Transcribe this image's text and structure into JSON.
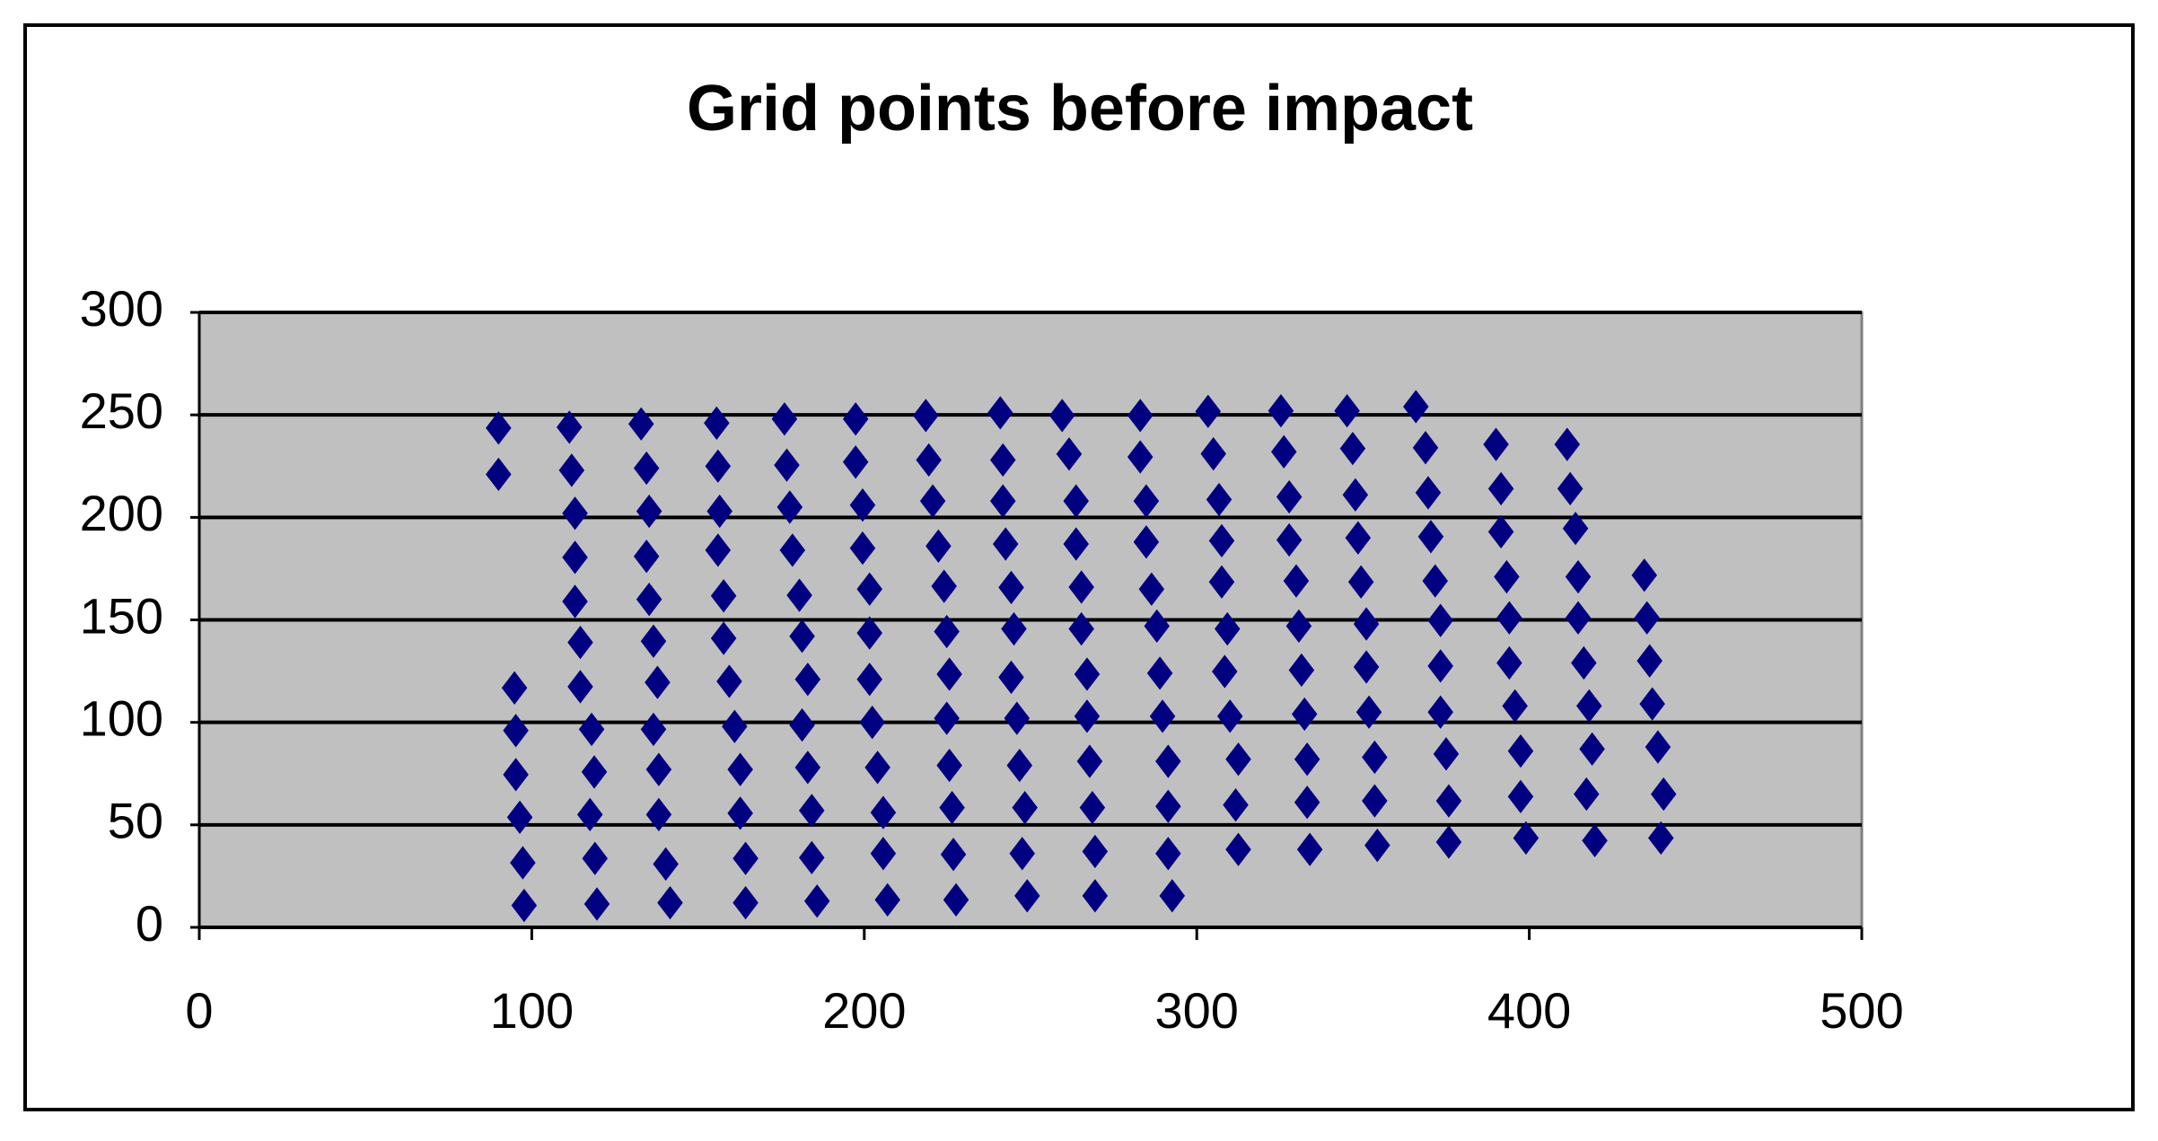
{
  "chart_data": {
    "type": "scatter",
    "title": "Grid points before impact",
    "series": [
      {
        "color": "#000080",
        "x": [
          90,
          90,
          94.8,
          95.2,
          95.2,
          96.4,
          97.3,
          97.7,
          111.3,
          112,
          113,
          113,
          113,
          114.6,
          114.6,
          118,
          118.8,
          117.5,
          119,
          119.6,
          132.9,
          134.5,
          135.3,
          134.5,
          135.3,
          136.6,
          137.8,
          136.6,
          138.2,
          138.2,
          140.3,
          141.6,
          155.6,
          156,
          156.5,
          156,
          157.7,
          157.7,
          159.4,
          161,
          162.7,
          162.7,
          164.3,
          164.3,
          176,
          176.7,
          177.6,
          178.4,
          180.5,
          181.3,
          183,
          181.3,
          183,
          184.2,
          184.2,
          185.8,
          197.4,
          197.4,
          199.5,
          199.5,
          201.6,
          201.6,
          201.6,
          202.4,
          204,
          205.7,
          205.7,
          207,
          218.5,
          219.4,
          220.6,
          222.3,
          224,
          224.8,
          225.6,
          224.8,
          225.6,
          226.4,
          226.8,
          227.6,
          240.9,
          241.7,
          241.7,
          242.5,
          244.2,
          245,
          244.2,
          245.9,
          246.7,
          248.3,
          247.5,
          249,
          259.5,
          261.6,
          263.7,
          263.7,
          265.3,
          265.3,
          267,
          267,
          267.8,
          268.6,
          269.4,
          269.4,
          283,
          283,
          284.8,
          284.8,
          286.4,
          288,
          288.9,
          289.7,
          291.4,
          291.4,
          291.4,
          292.6,
          303.4,
          305,
          306.7,
          307.5,
          307.5,
          309.2,
          308.4,
          310,
          312.5,
          311.7,
          312.5,
          325.3,
          326.2,
          327.8,
          327.8,
          329.9,
          330.7,
          331.5,
          332.4,
          333.2,
          333.2,
          334,
          345.2,
          346.9,
          347.7,
          348.5,
          349.4,
          351,
          351,
          351.8,
          353.5,
          353.5,
          354.3,
          365.9,
          368.8,
          369.6,
          370.4,
          371.7,
          373.3,
          373.3,
          373.3,
          375,
          375.8,
          375.8,
          390,
          391.5,
          391.5,
          393.2,
          394,
          394,
          395.7,
          397.4,
          397.4,
          399,
          411.4,
          412.3,
          413.9,
          414.7,
          414.7,
          416.4,
          418,
          418.9,
          417.2,
          419.7,
          434.6,
          435.4,
          436.2,
          437,
          438.7,
          440.4,
          439.6
        ],
        "y": [
          243.6,
          221,
          116.8,
          96,
          74.5,
          53.7,
          31.5,
          10.7,
          244,
          223,
          202,
          180.5,
          159,
          139,
          117.4,
          96.6,
          75.8,
          55,
          33.6,
          11.4,
          245.6,
          224,
          203,
          181,
          160,
          139.6,
          119.5,
          96.6,
          77,
          55,
          30.9,
          12,
          246,
          225,
          203,
          184,
          161.7,
          141,
          120,
          98,
          77,
          55.7,
          33.6,
          12,
          248,
          225.5,
          205,
          184,
          162,
          142,
          121,
          98.7,
          78,
          57,
          34,
          12.8,
          248,
          227,
          206,
          185,
          165,
          143.6,
          121,
          100,
          78,
          56,
          36,
          13.4,
          249.7,
          228,
          208,
          186,
          166.4,
          144.3,
          123.5,
          102,
          79,
          58.4,
          35.6,
          13.4,
          251,
          228,
          208,
          187,
          165.8,
          145.6,
          122,
          102,
          79,
          58.4,
          36,
          15.4,
          249.7,
          230.9,
          208,
          187,
          166,
          145.6,
          123.5,
          103,
          81,
          58.4,
          37,
          15.4,
          249.7,
          229.5,
          208,
          188,
          165,
          147,
          124,
          103,
          81,
          59,
          36,
          15.4,
          251.7,
          231,
          208.7,
          188.6,
          168.5,
          145.6,
          124.8,
          103,
          82,
          59.7,
          38,
          252,
          232,
          210,
          189,
          169,
          147,
          125.5,
          104,
          82,
          61,
          38,
          252,
          233.6,
          211,
          190,
          168.5,
          148,
          127,
          105,
          83,
          61.7,
          40,
          254,
          234,
          212,
          190.6,
          169,
          149.7,
          127.5,
          105,
          84.6,
          61.7,
          41.6,
          235.6,
          214,
          193,
          171,
          151,
          129,
          108,
          86,
          63.8,
          43.6,
          235.6,
          214,
          194.6,
          171,
          151,
          129,
          108,
          87,
          65,
          42.3,
          171.8,
          151,
          130,
          109,
          88,
          65,
          43.6
        ]
      }
    ],
    "xlim": [
      0,
      500
    ],
    "xticks": [
      0,
      100,
      200,
      300,
      400,
      500
    ],
    "ylim": [
      0,
      300
    ],
    "yticks": [
      0,
      50,
      100,
      150,
      200,
      250,
      300
    ],
    "grid": true
  }
}
